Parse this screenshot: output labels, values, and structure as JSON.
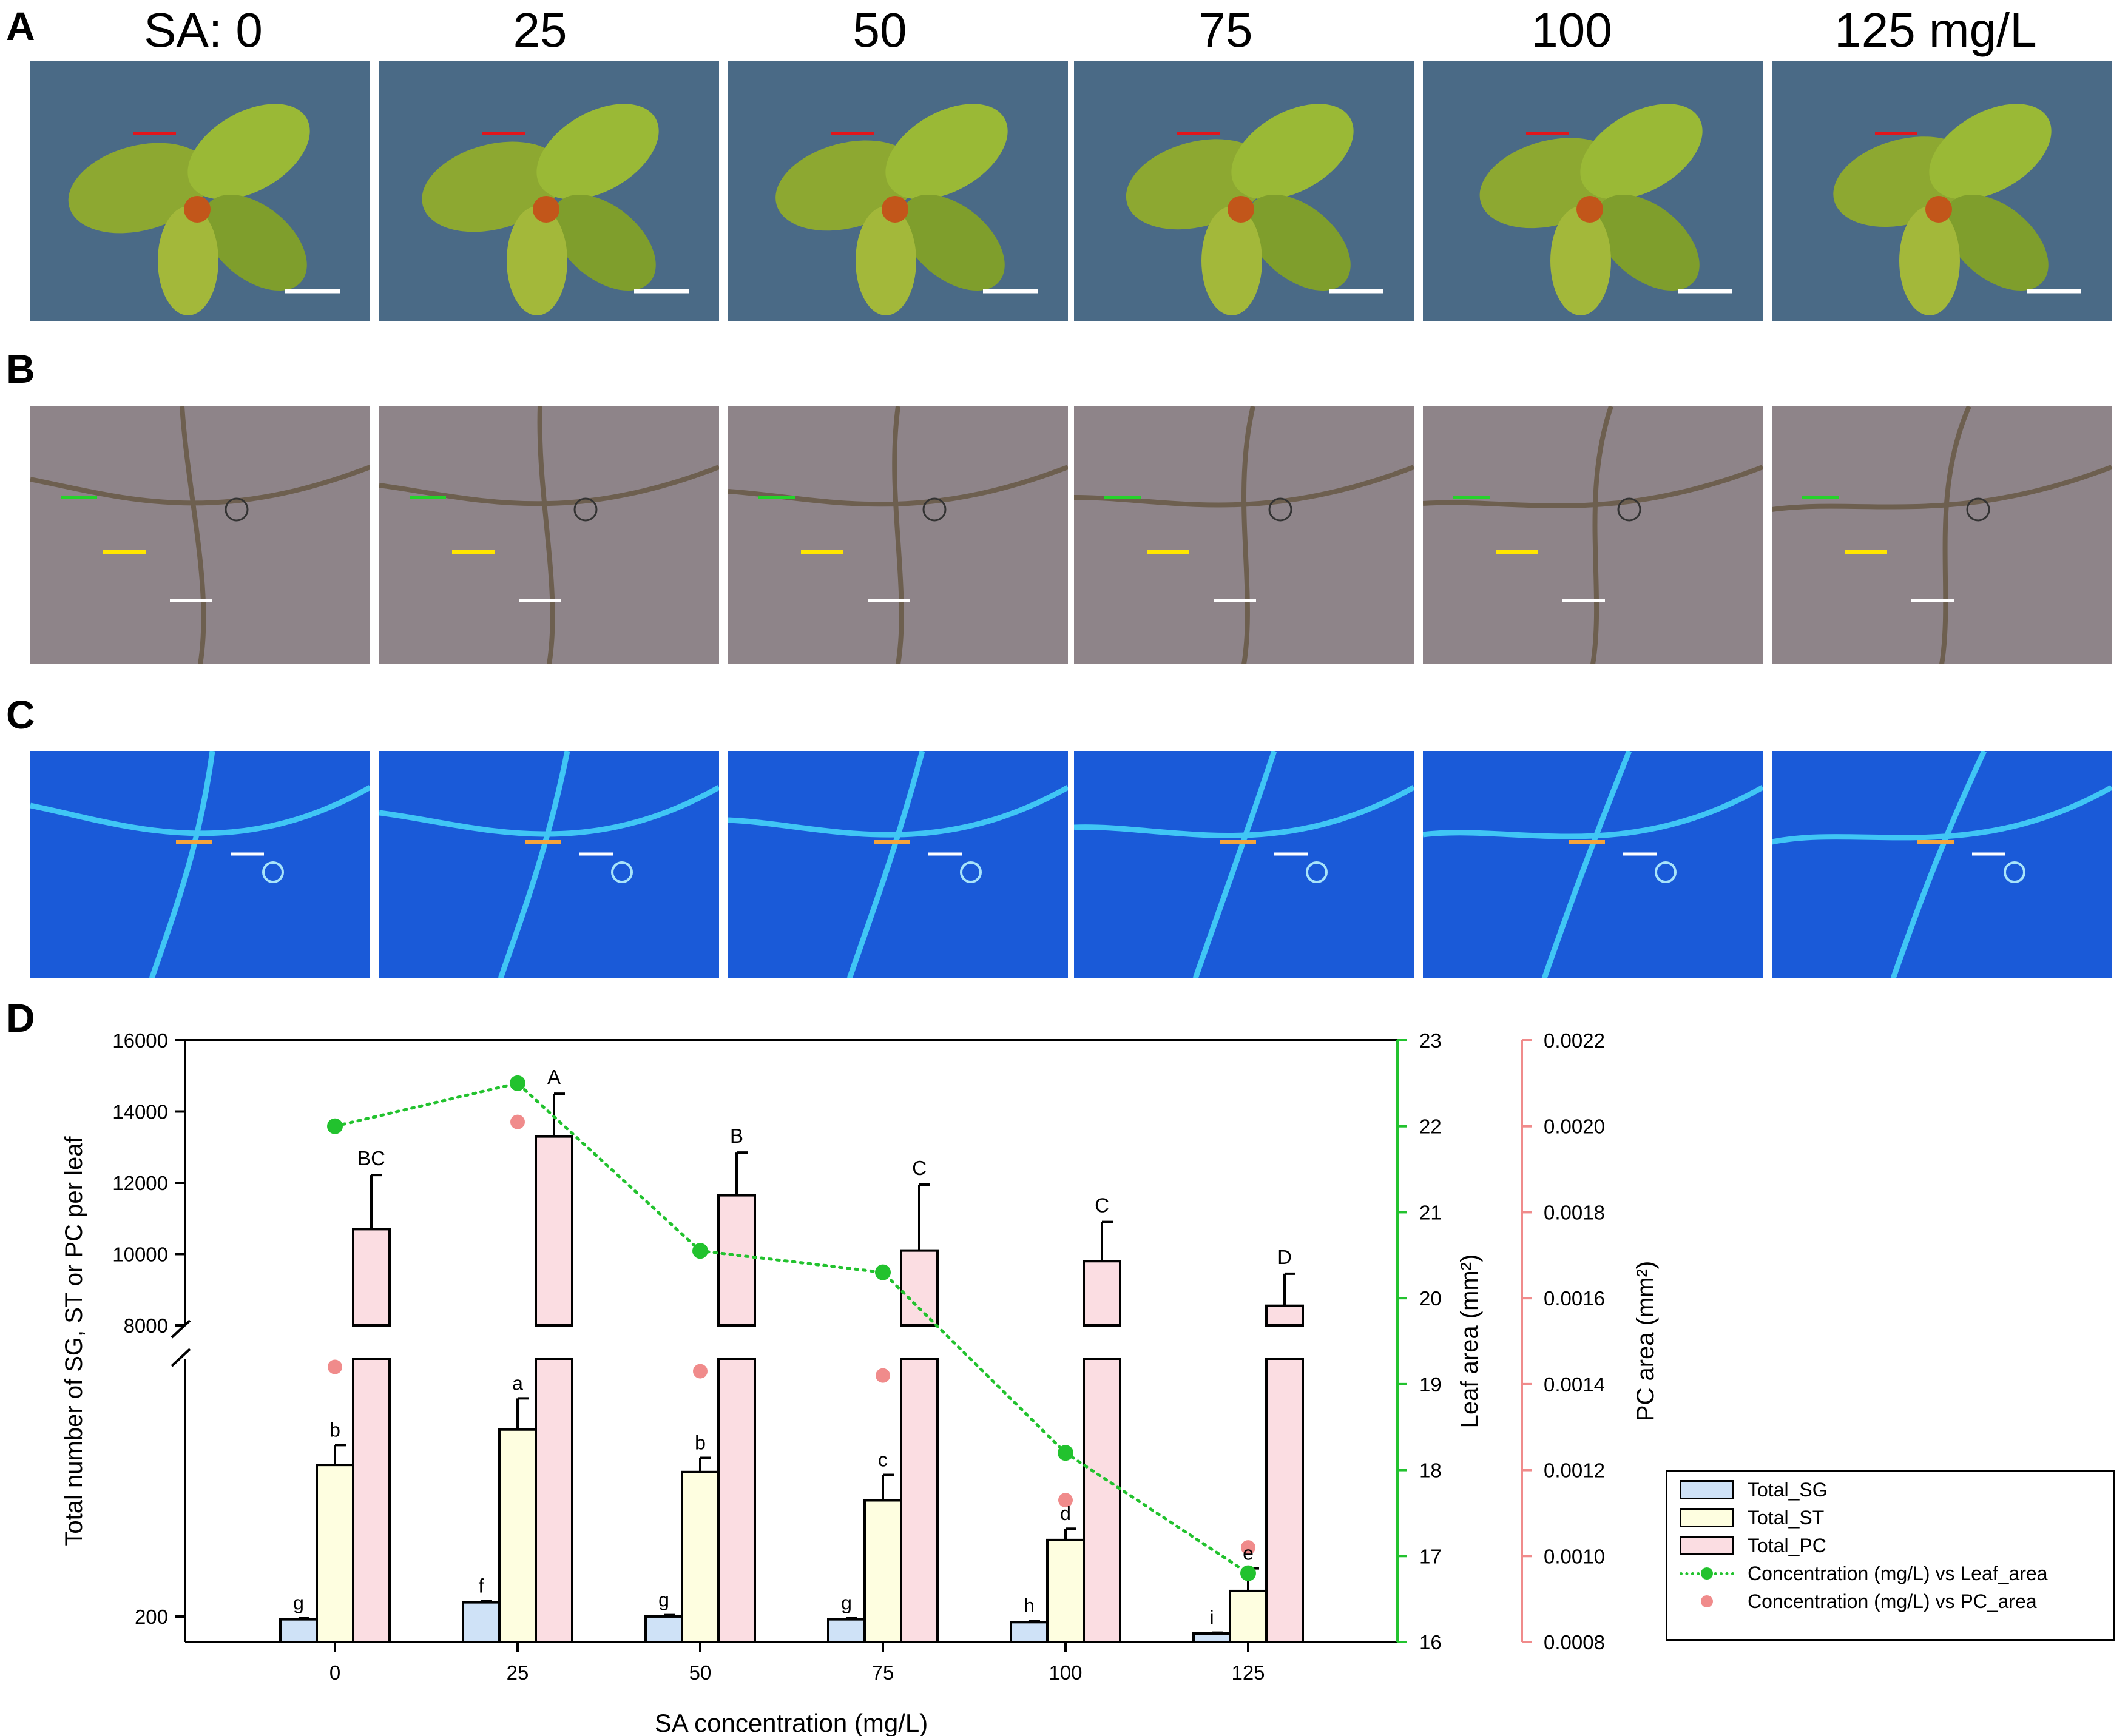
{
  "panels": {
    "a_letter": "A",
    "b_letter": "B",
    "c_letter": "C",
    "d_letter": "D"
  },
  "sa_labels": [
    "SA: 0",
    "25",
    "50",
    "75",
    "100",
    "125 mg/L"
  ],
  "colors": {
    "sg": "#cfe2f7",
    "st": "#fefee0",
    "pc": "#fbdde2",
    "leaf_line": "#22c22e",
    "pc_points": "#f08b8b",
    "right_axis_pc": "#f08b8b",
    "right_axis_leaf": "#22c22e",
    "photo_a_bg": "#4a6a86",
    "photo_b_bg": "#8e8489",
    "photo_c_bg": "#1a5ad8"
  },
  "chart_data": {
    "type": "bar",
    "xlabel": "SA concentration (mg/L)",
    "ylabel": "Total number of SG, ST or PC per leaf",
    "ylabel_right1": "Leaf area (mm²)",
    "ylabel_right2": "PC area (mm²)",
    "categories": [
      "0",
      "25",
      "50",
      "75",
      "100",
      "125"
    ],
    "left_upper_ticks": [
      "16000",
      "14000",
      "12000",
      "10000",
      "8000"
    ],
    "left_upper_range": [
      8000,
      16000
    ],
    "left_lower_ticks": [
      "200"
    ],
    "leaf_ticks": [
      "23",
      "22",
      "21",
      "20",
      "19",
      "18",
      "17",
      "16"
    ],
    "leaf_range": [
      16,
      23
    ],
    "pc_ticks": [
      "0.0022",
      "0.0020",
      "0.0018",
      "0.0016",
      "0.0014",
      "0.0012",
      "0.0010",
      "0.0008"
    ],
    "pc_range": [
      0.0008,
      0.0022
    ],
    "series": [
      {
        "name": "Total_SG",
        "values_lower_axis_fraction": [
          0.08,
          0.14,
          0.09,
          0.08,
          0.07,
          0.03
        ],
        "error_fraction": [
          0.005,
          0.005,
          0.005,
          0.005,
          0.005,
          0.003
        ],
        "letters": [
          "g",
          "f",
          "g",
          "g",
          "h",
          "i"
        ]
      },
      {
        "name": "Total_ST",
        "values_lower_axis_fraction": [
          0.625,
          0.75,
          0.6,
          0.5,
          0.36,
          0.18
        ],
        "error_fraction": [
          0.07,
          0.11,
          0.05,
          0.09,
          0.04,
          0.08
        ],
        "letters": [
          "b",
          "a",
          "b",
          "c",
          "d",
          "e"
        ]
      },
      {
        "name": "Total_PC",
        "values": [
          10700,
          13300,
          11650,
          10100,
          9800,
          8550
        ],
        "errors": [
          1520,
          1200,
          1200,
          1850,
          1100,
          900
        ],
        "letters": [
          "BC",
          "A",
          "B",
          "C",
          "C",
          "D"
        ]
      }
    ],
    "leaf_area": {
      "name": "Concentration (mg/L) vs Leaf_area",
      "values": [
        22.0,
        22.5,
        20.55,
        20.3,
        18.2,
        16.8
      ]
    },
    "pc_area": {
      "name": "Concentration (mg/L) vs PC_area",
      "values": [
        0.00144,
        0.00201,
        0.00143,
        0.00142,
        0.00113,
        0.00102
      ]
    },
    "legend": [
      "Total_SG",
      "Total_ST",
      "Total_PC",
      "Concentration (mg/L) vs Leaf_area",
      "Concentration (mg/L) vs PC_area"
    ]
  }
}
